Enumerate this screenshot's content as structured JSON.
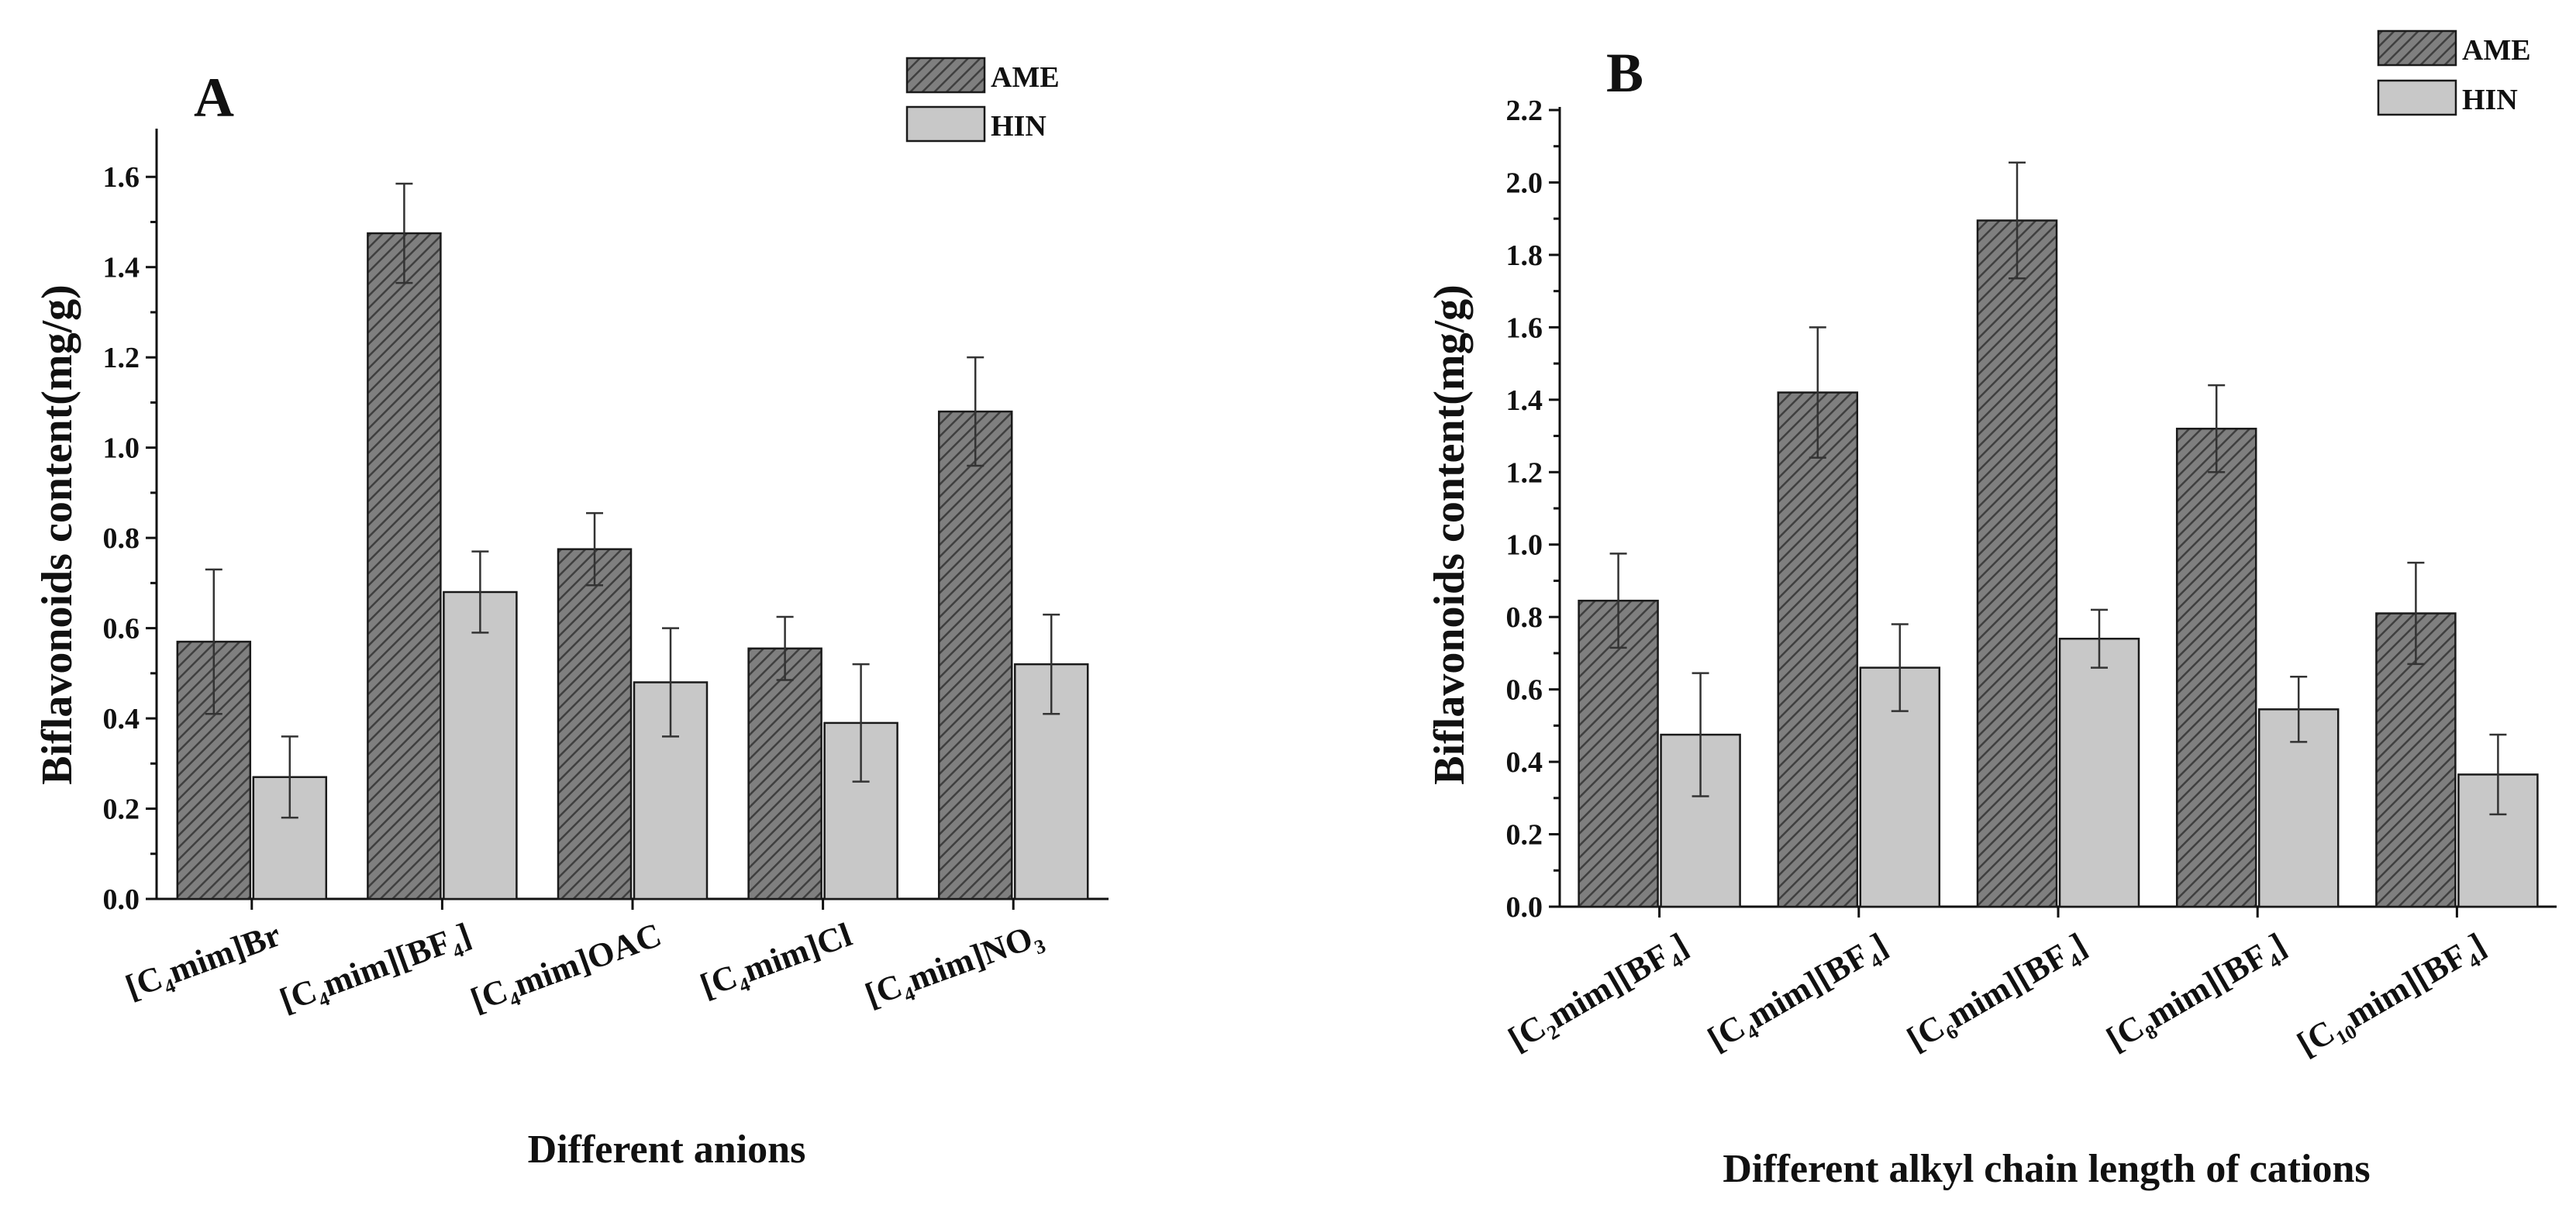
{
  "chart_data": [
    {
      "type": "bar",
      "panel": "A",
      "xlabel": "Different anions",
      "ylabel": "Biflavonoids content(mg/g)",
      "ylim": [
        0,
        1.7
      ],
      "yticks": [
        "0.0",
        "0.2",
        "0.4",
        "0.6",
        "0.8",
        "1.0",
        "1.2",
        "1.4",
        "1.6"
      ],
      "categories": [
        {
          "pre": "[C",
          "sub": "4",
          "mid": "mim]Br",
          "sub2": "",
          "post": ""
        },
        {
          "pre": "[C",
          "sub": "4",
          "mid": "mim][BF",
          "sub2": "4",
          "post": "]"
        },
        {
          "pre": "[C",
          "sub": "4",
          "mid": "mim]OAC",
          "sub2": "",
          "post": ""
        },
        {
          "pre": "[C",
          "sub": "4",
          "mid": "mim]Cl",
          "sub2": "",
          "post": ""
        },
        {
          "pre": "[C",
          "sub": "4",
          "mid": "mim]NO",
          "sub2": "3",
          "post": ""
        }
      ],
      "series": [
        {
          "name": "AME",
          "values": [
            0.57,
            1.475,
            0.775,
            0.555,
            1.08
          ],
          "errors": [
            0.16,
            0.11,
            0.08,
            0.07,
            0.12
          ]
        },
        {
          "name": "HIN",
          "values": [
            0.27,
            0.68,
            0.48,
            0.39,
            0.52
          ],
          "errors": [
            0.09,
            0.09,
            0.12,
            0.13,
            0.11
          ]
        }
      ],
      "legend": "top-right"
    },
    {
      "type": "bar",
      "panel": "B",
      "xlabel": "Different alkyl chain length of cations",
      "ylabel": "Biflavonoids content(mg/g)",
      "ylim": [
        0,
        2.2
      ],
      "yticks": [
        "0.0",
        "0.2",
        "0.4",
        "0.6",
        "0.8",
        "1.0",
        "1.2",
        "1.4",
        "1.6",
        "1.8",
        "2.0",
        "2.2"
      ],
      "categories": [
        {
          "pre": "[C",
          "sub": "2",
          "mid": "mim][BF",
          "sub2": "4",
          "post": "]"
        },
        {
          "pre": "[C",
          "sub": "4",
          "mid": "mim][BF",
          "sub2": "4",
          "post": "]"
        },
        {
          "pre": "[C",
          "sub": "6",
          "mid": "mim][BF",
          "sub2": "4",
          "post": "]"
        },
        {
          "pre": "[C",
          "sub": "8",
          "mid": "mim][BF",
          "sub2": "4",
          "post": "]"
        },
        {
          "pre": "[C",
          "sub": "10",
          "mid": "mim][BF",
          "sub2": "4",
          "post": "]"
        }
      ],
      "series": [
        {
          "name": "AME",
          "values": [
            0.845,
            1.42,
            1.895,
            1.32,
            0.81
          ],
          "errors": [
            0.13,
            0.18,
            0.16,
            0.12,
            0.14
          ]
        },
        {
          "name": "HIN",
          "values": [
            0.475,
            0.66,
            0.74,
            0.545,
            0.365
          ],
          "errors": [
            0.17,
            0.12,
            0.08,
            0.09,
            0.11
          ]
        }
      ],
      "legend": "top-right"
    }
  ],
  "colors": {
    "ame_fill": "#7f7f7f",
    "ame_hatch": "#3a3a3a",
    "hin_fill": "#c8c8c8"
  }
}
